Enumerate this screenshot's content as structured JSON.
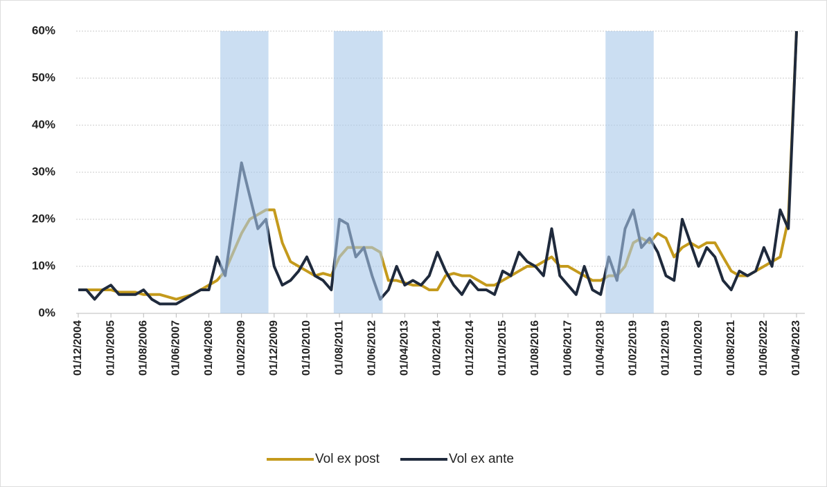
{
  "chart_data": {
    "type": "line",
    "categories": [
      "01/12/2004",
      null,
      null,
      null,
      "01/10/2005",
      null,
      null,
      null,
      "01/08/2006",
      null,
      null,
      null,
      "01/06/2007",
      null,
      null,
      null,
      "01/04/2008",
      null,
      null,
      null,
      "01/02/2009",
      null,
      null,
      null,
      "01/12/2009",
      null,
      null,
      null,
      "01/10/2010",
      null,
      null,
      null,
      "01/08/2011",
      null,
      null,
      null,
      "01/06/2012",
      null,
      null,
      null,
      "01/04/2013",
      null,
      null,
      null,
      "01/02/2014",
      null,
      null,
      null,
      "01/12/2014",
      null,
      null,
      null,
      "01/10/2015",
      null,
      null,
      null,
      "01/08/2016",
      null,
      null,
      null,
      "01/06/2017",
      null,
      null,
      null,
      "01/04/2018",
      null,
      null,
      null,
      "01/02/2019",
      null,
      null,
      null,
      "01/12/2019",
      null,
      null,
      null,
      "01/10/2020",
      null,
      null,
      null,
      "01/08/2021",
      null,
      null,
      null,
      "01/06/2022",
      null,
      null,
      null,
      "01/04/2023"
    ],
    "series": [
      {
        "name": "Vol ex post",
        "color": "#c49a1c",
        "values": [
          5,
          5,
          5,
          5,
          5,
          4.5,
          4.5,
          4.5,
          4,
          4,
          4,
          3.5,
          3,
          3.5,
          4,
          5,
          6,
          7,
          9,
          13,
          17,
          20,
          21,
          22,
          22,
          15,
          11,
          10,
          9,
          8,
          8.5,
          8,
          12,
          14,
          14,
          14,
          14,
          13,
          7,
          7,
          6.5,
          6,
          6,
          5,
          5,
          8,
          8.5,
          8,
          8,
          7,
          6,
          6,
          7,
          8,
          9,
          10,
          10,
          11,
          12,
          10,
          10,
          9,
          8,
          7,
          7,
          8,
          8,
          10,
          15,
          16,
          15,
          17,
          16,
          12,
          14,
          15,
          14,
          15,
          15,
          12,
          9,
          8,
          8,
          9,
          10,
          11,
          12,
          20,
          60
        ]
      },
      {
        "name": "Vol ex ante",
        "color": "#1f2a3c",
        "values": [
          5,
          5,
          3,
          5,
          6,
          4,
          4,
          4,
          5,
          3,
          2,
          2,
          2,
          3,
          4,
          5,
          5,
          12,
          8,
          20,
          32,
          25,
          18,
          20,
          10,
          6,
          7,
          9,
          12,
          8,
          7,
          5,
          20,
          19,
          12,
          14,
          8,
          3,
          5,
          10,
          6,
          7,
          6,
          8,
          13,
          9,
          6,
          4,
          7,
          5,
          5,
          4,
          9,
          8,
          13,
          11,
          10,
          8,
          18,
          8,
          6,
          4,
          10,
          5,
          4,
          12,
          7,
          18,
          22,
          14,
          16,
          13,
          8,
          7,
          20,
          15,
          10,
          14,
          12,
          7,
          5,
          9,
          8,
          9,
          14,
          10,
          22,
          18,
          60
        ]
      }
    ],
    "bands": [
      [
        17.4,
        23.3
      ],
      [
        31.3,
        37.3
      ],
      [
        64.6,
        70.5
      ]
    ],
    "band_color": "#a9c8ea",
    "ylim": [
      0,
      60
    ],
    "yticks": [
      {
        "value": 0,
        "label": "0%"
      },
      {
        "value": 10,
        "label": "10%"
      },
      {
        "value": 20,
        "label": "20%"
      },
      {
        "value": 30,
        "label": "30%"
      },
      {
        "value": 40,
        "label": "40%"
      },
      {
        "value": 50,
        "label": "50%"
      },
      {
        "value": 60,
        "label": "60%"
      }
    ],
    "grid": true
  }
}
